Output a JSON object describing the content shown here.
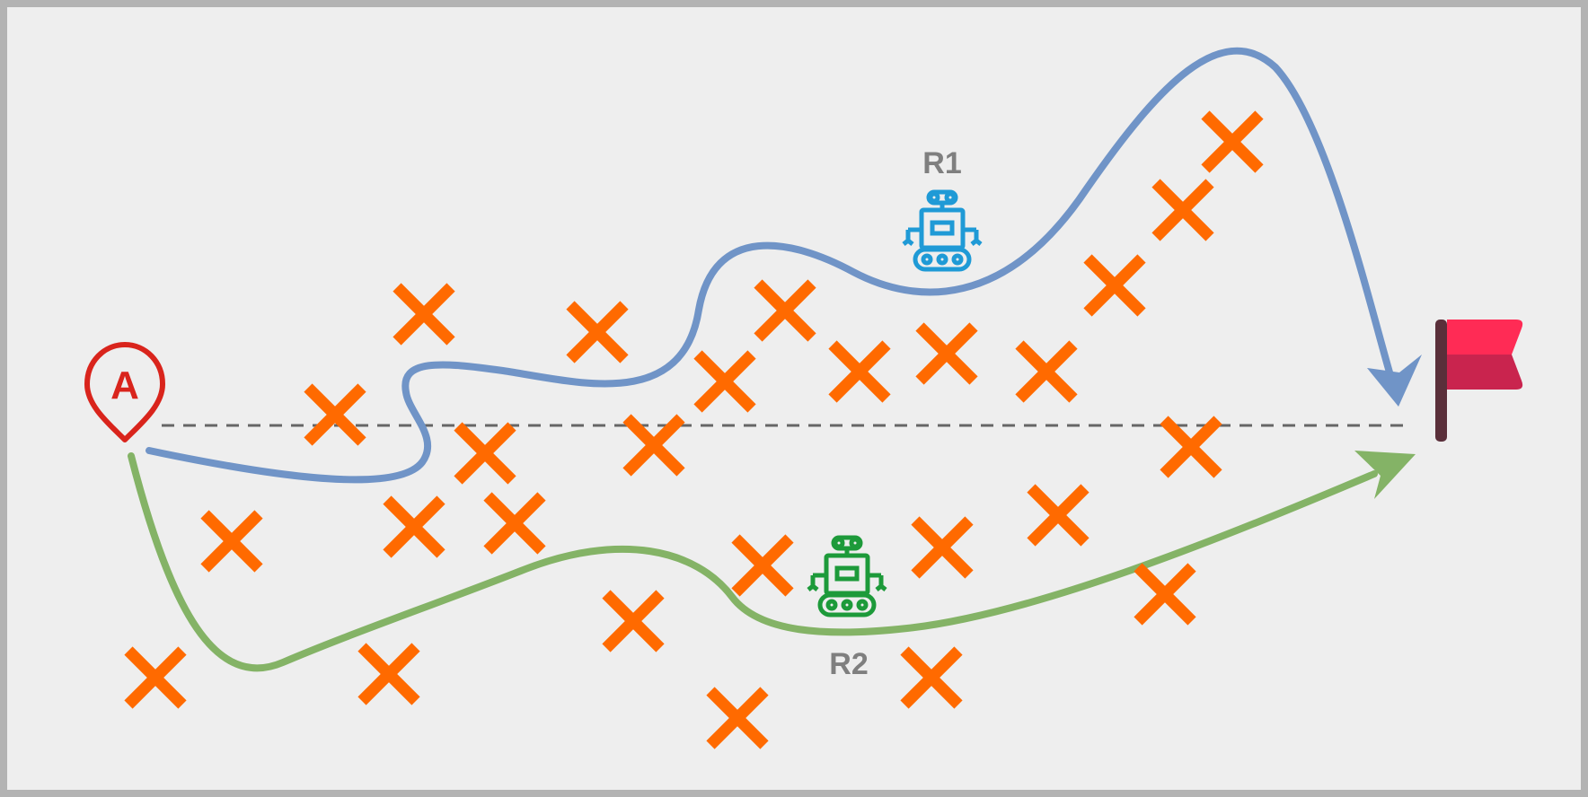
{
  "colors": {
    "background": "#eeeeee",
    "border": "#b3b3b3",
    "path_r1": "#7094c7",
    "path_r2": "#84b366",
    "obstacle": "#ff6a00",
    "start_marker": "#d9241c",
    "robot_r1": "#1f9ad6",
    "robot_r2": "#1d9a3a",
    "flag_top": "#ff2b55",
    "flag_bottom": "#c9244e",
    "flag_pole": "#5a2f3a",
    "direct_line": "#666666",
    "label_text": "#7f7f7f"
  },
  "start": {
    "letter": "A",
    "icon": "location-pin-icon"
  },
  "goal": {
    "icon": "flag-icon"
  },
  "robots": [
    {
      "id": "r1",
      "label": "R1",
      "icon": "robot-icon"
    },
    {
      "id": "r2",
      "label": "R2",
      "icon": "robot-icon"
    }
  ],
  "obstacles": {
    "icon": "cross-icon"
  }
}
